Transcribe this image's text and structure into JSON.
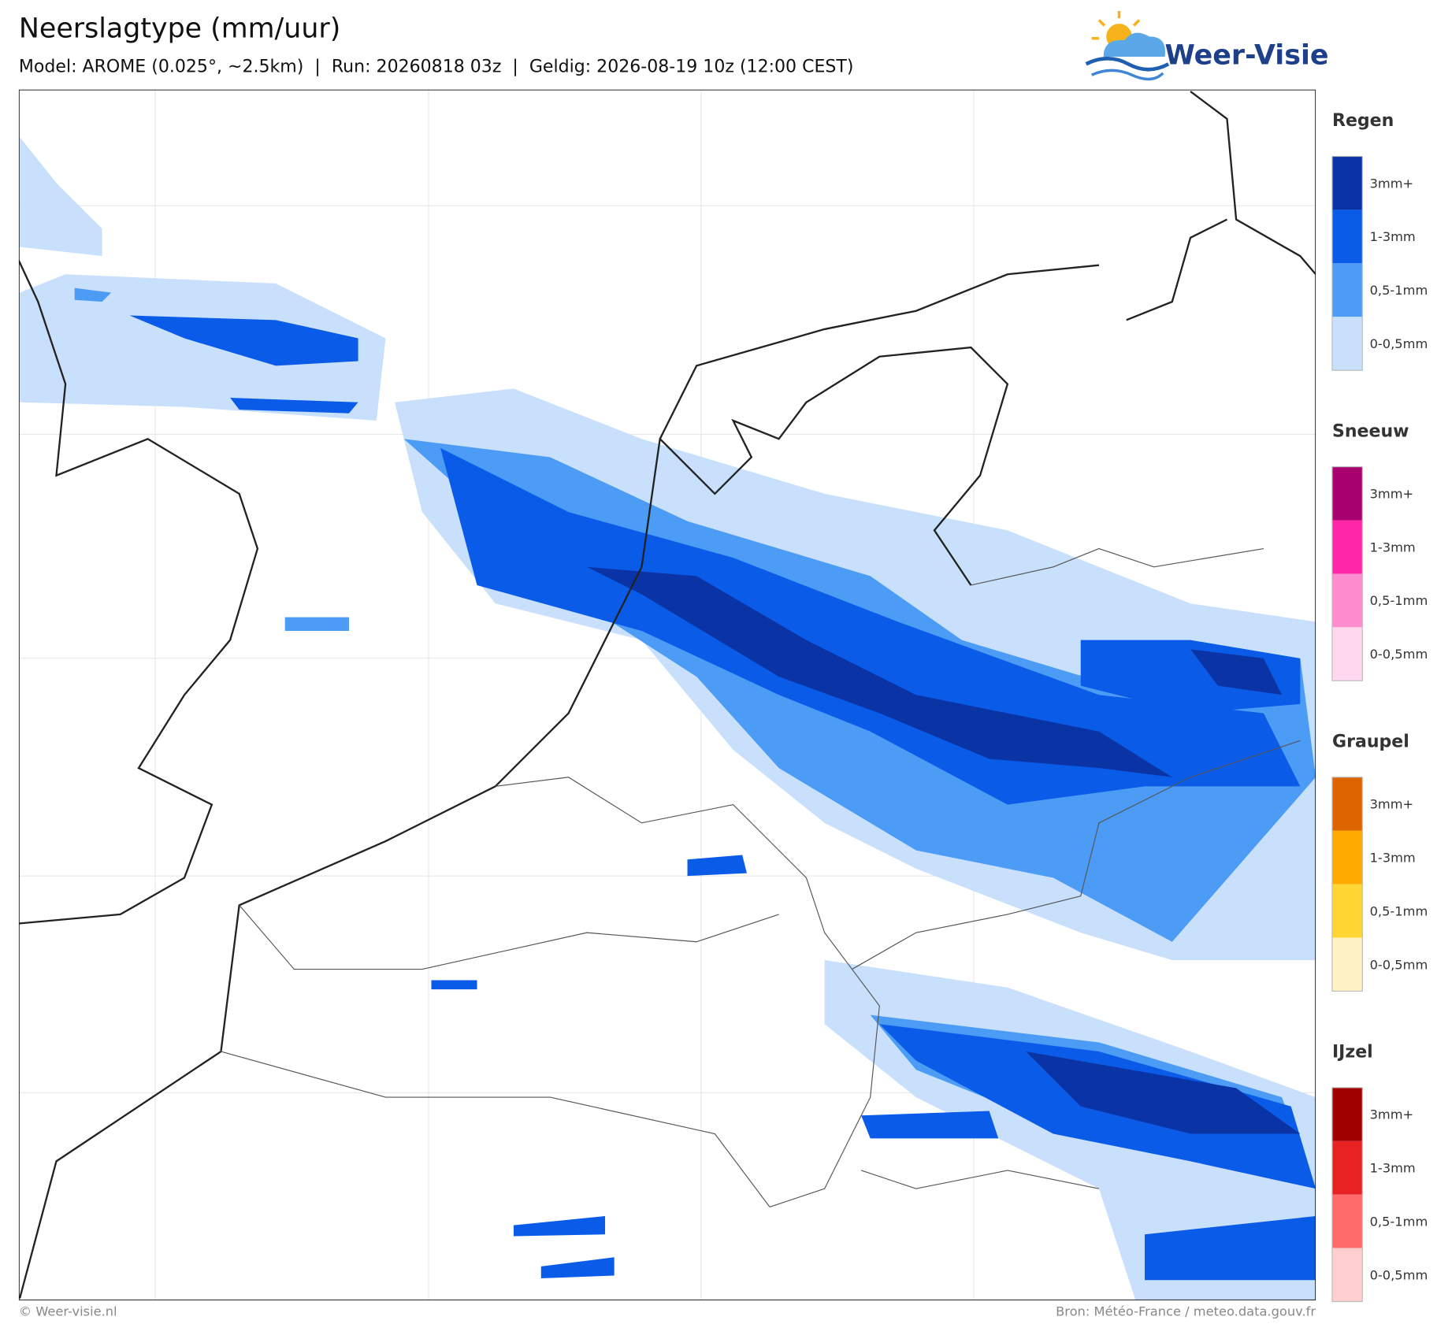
{
  "header": {
    "title": "Neerslagtype (mm/uur)",
    "subtitle": "Model: AROME (0.025°, ~2.5km)  |  Run: 20260818 03z  |  Geldig: 2026-08-19 10z (12:00 CEST)",
    "logo": "Weer-Visie"
  },
  "legend": [
    {
      "title": "Regen",
      "levels": [
        {
          "label": "3mm+",
          "color": "#0a34a6"
        },
        {
          "label": "1-3mm",
          "color": "#0a5ce8"
        },
        {
          "label": "0,5-1mm",
          "color": "#4c9cf5"
        },
        {
          "label": "0-0,5mm",
          "color": "#c8e0fb"
        }
      ]
    },
    {
      "title": "Sneeuw",
      "levels": [
        {
          "label": "3mm+",
          "color": "#a8006e"
        },
        {
          "label": "1-3mm",
          "color": "#ff26a8"
        },
        {
          "label": "0,5-1mm",
          "color": "#ff8cce"
        },
        {
          "label": "0-0,5mm",
          "color": "#ffd8ee"
        }
      ]
    },
    {
      "title": "Graupel",
      "levels": [
        {
          "label": "3mm+",
          "color": "#de6400"
        },
        {
          "label": "1-3mm",
          "color": "#ffaa00"
        },
        {
          "label": "0,5-1mm",
          "color": "#ffd633"
        },
        {
          "label": "0-0,5mm",
          "color": "#fff2c6"
        }
      ]
    },
    {
      "title": "IJzel",
      "levels": [
        {
          "label": "3mm+",
          "color": "#a00000"
        },
        {
          "label": "1-3mm",
          "color": "#e82222"
        },
        {
          "label": "0,5-1mm",
          "color": "#ff6b6b"
        },
        {
          "label": "0-0,5mm",
          "color": "#ffcfcf"
        }
      ]
    }
  ],
  "footer": {
    "left": "© Weer-visie.nl",
    "right": "Bron: Météo-France / meteo.data.gouv.fr"
  }
}
